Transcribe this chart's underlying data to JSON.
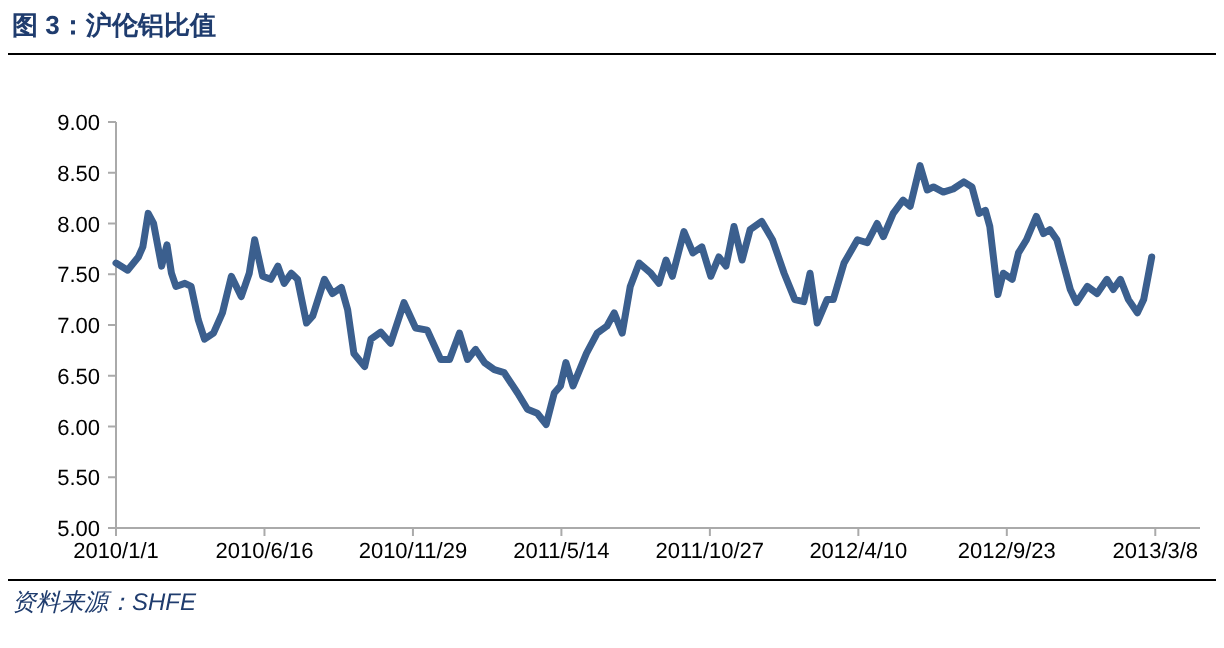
{
  "chart_data": {
    "type": "line",
    "title": "图 3：沪伦铝比值",
    "annotations": [
      "资料来源：SHFE"
    ],
    "x": [
      "2010-01-01",
      "2010-01-14",
      "2010-01-26",
      "2010-01-31",
      "2010-02-06",
      "2010-02-12",
      "2010-02-21",
      "2010-02-27",
      "2010-03-04",
      "2010-03-09",
      "2010-03-19",
      "2010-03-26",
      "2010-04-03",
      "2010-04-10",
      "2010-04-20",
      "2010-04-30",
      "2010-05-10",
      "2010-05-21",
      "2010-05-30",
      "2010-06-05",
      "2010-06-14",
      "2010-06-23",
      "2010-07-01",
      "2010-07-08",
      "2010-07-16",
      "2010-07-23",
      "2010-08-02",
      "2010-08-09",
      "2010-08-22",
      "2010-08-31",
      "2010-09-10",
      "2010-09-17",
      "2010-09-24",
      "2010-10-06",
      "2010-10-13",
      "2010-10-24",
      "2010-11-04",
      "2010-11-19",
      "2010-12-02",
      "2010-12-15",
      "2010-12-30",
      "2011-01-09",
      "2011-01-20",
      "2011-01-29",
      "2011-02-07",
      "2011-02-17",
      "2011-02-28",
      "2011-03-11",
      "2011-03-26",
      "2011-04-06",
      "2011-04-17",
      "2011-04-27",
      "2011-05-06",
      "2011-05-13",
      "2011-05-19",
      "2011-05-27",
      "2011-06-11",
      "2011-06-23",
      "2011-07-04",
      "2011-07-12",
      "2011-07-21",
      "2011-07-30",
      "2011-08-09",
      "2011-08-22",
      "2011-08-31",
      "2011-09-08",
      "2011-09-15",
      "2011-09-28",
      "2011-10-08",
      "2011-10-18",
      "2011-10-28",
      "2011-11-06",
      "2011-11-14",
      "2011-11-23",
      "2011-12-02",
      "2011-12-11",
      "2011-12-24",
      "2012-01-05",
      "2012-01-18",
      "2012-01-30",
      "2012-02-09",
      "2012-02-16",
      "2012-02-24",
      "2012-03-06",
      "2012-03-13",
      "2012-03-25",
      "2012-04-09",
      "2012-04-20",
      "2012-05-01",
      "2012-05-08",
      "2012-05-19",
      "2012-05-30",
      "2012-06-07",
      "2012-06-18",
      "2012-06-26",
      "2012-07-03",
      "2012-07-14",
      "2012-07-25",
      "2012-08-06",
      "2012-08-15",
      "2012-08-23",
      "2012-08-30",
      "2012-09-04",
      "2012-09-13",
      "2012-09-19",
      "2012-09-29",
      "2012-10-06",
      "2012-10-15",
      "2012-10-26",
      "2012-11-03",
      "2012-11-10",
      "2012-11-18",
      "2012-11-25",
      "2012-12-03",
      "2012-12-10",
      "2012-12-22",
      "2013-01-02",
      "2013-01-13",
      "2013-01-20",
      "2013-01-28",
      "2013-02-06",
      "2013-02-16",
      "2013-02-23",
      "2013-02-28",
      "2013-03-04"
    ],
    "series": [
      {
        "color": "#3b5f8e",
        "values": [
          7.61,
          7.54,
          7.67,
          7.77,
          8.1,
          8.0,
          7.58,
          7.79,
          7.51,
          7.38,
          7.41,
          7.38,
          7.05,
          6.86,
          6.92,
          7.12,
          7.48,
          7.28,
          7.51,
          7.84,
          7.48,
          7.45,
          7.58,
          7.41,
          7.51,
          7.45,
          7.02,
          7.09,
          7.45,
          7.31,
          7.37,
          7.15,
          6.72,
          6.59,
          6.86,
          6.93,
          6.82,
          7.22,
          6.97,
          6.95,
          6.66,
          6.66,
          6.92,
          6.66,
          6.76,
          6.63,
          6.56,
          6.53,
          6.33,
          6.17,
          6.13,
          6.02,
          6.33,
          6.4,
          6.63,
          6.4,
          6.72,
          6.92,
          6.99,
          7.12,
          6.92,
          7.38,
          7.61,
          7.51,
          7.41,
          7.64,
          7.48,
          7.92,
          7.71,
          7.77,
          7.48,
          7.67,
          7.58,
          7.97,
          7.64,
          7.94,
          8.02,
          7.84,
          7.51,
          7.25,
          7.23,
          7.51,
          7.02,
          7.25,
          7.25,
          7.61,
          7.84,
          7.81,
          8.0,
          7.87,
          8.1,
          8.23,
          8.17,
          8.57,
          8.33,
          8.36,
          8.31,
          8.34,
          8.41,
          8.36,
          8.1,
          8.13,
          7.97,
          7.3,
          7.51,
          7.45,
          7.71,
          7.84,
          8.07,
          7.9,
          7.94,
          7.84,
          7.61,
          7.35,
          7.22,
          7.38,
          7.31,
          7.45,
          7.35,
          7.45,
          7.25,
          7.12,
          7.25,
          7.48,
          7.67
        ]
      }
    ],
    "xlim": [
      "2010-01-01",
      "2013-04-27"
    ],
    "xticks": [
      {
        "value": "2010-01-01",
        "label": "2010/1/1"
      },
      {
        "value": "2010-06-16",
        "label": "2010/6/16"
      },
      {
        "value": "2010-11-29",
        "label": "2010/11/29"
      },
      {
        "value": "2011-05-14",
        "label": "2011/5/14"
      },
      {
        "value": "2011-10-27",
        "label": "2011/10/27"
      },
      {
        "value": "2012-04-10",
        "label": "2012/4/10"
      },
      {
        "value": "2012-09-23",
        "label": "2012/9/23"
      },
      {
        "value": "2013-03-08",
        "label": "2013/3/8"
      }
    ],
    "ylim": [
      5,
      9
    ],
    "yticks": [
      {
        "value": 5,
        "label": "5.00"
      },
      {
        "value": 5.5,
        "label": "5.50"
      },
      {
        "value": 6,
        "label": "6.00"
      },
      {
        "value": 6.5,
        "label": "6.50"
      },
      {
        "value": 7,
        "label": "7.00"
      },
      {
        "value": 7.5,
        "label": "7.50"
      },
      {
        "value": 8,
        "label": "8.00"
      },
      {
        "value": 8.5,
        "label": "8.50"
      },
      {
        "value": 9,
        "label": "9.00"
      }
    ],
    "grid": false,
    "line_style": "solid"
  }
}
